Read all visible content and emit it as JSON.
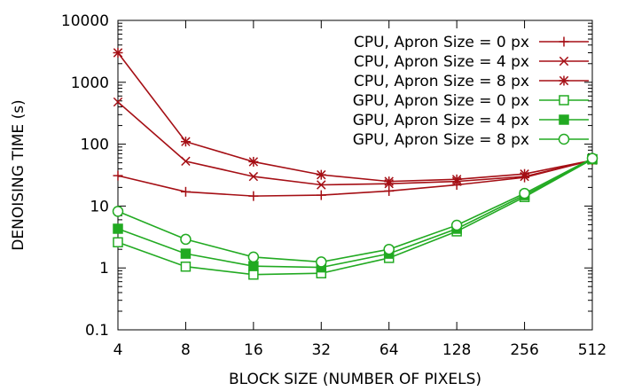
{
  "chart_data": {
    "type": "line",
    "xlabel": "BLOCK SIZE (NUMBER OF PIXELS)",
    "ylabel": "DENOISING TIME (s)",
    "x_scale": "log2",
    "y_scale": "log10",
    "ylim": [
      0.1,
      10000
    ],
    "x": [
      4,
      8,
      16,
      32,
      64,
      128,
      256,
      512
    ],
    "x_tick_labels": [
      "4",
      "8",
      "16",
      "32",
      "64",
      "128",
      "256",
      "512"
    ],
    "y_tick_labels": [
      "0.1",
      "1",
      "10",
      "100",
      "1000",
      "10000"
    ],
    "y_ticks": [
      0.1,
      1,
      10,
      100,
      1000,
      10000
    ],
    "legend_position": "top-right",
    "grid": false,
    "series": [
      {
        "name": "CPU, Apron Size = 0 px",
        "color": "#a50f15",
        "marker": "plus",
        "values": [
          31,
          17,
          14.5,
          15,
          17.5,
          22,
          29,
          55
        ]
      },
      {
        "name": "CPU, Apron Size = 4 px",
        "color": "#a50f15",
        "marker": "cross",
        "values": [
          480,
          53,
          30,
          22,
          23,
          25,
          30,
          55
        ]
      },
      {
        "name": "CPU, Apron Size = 8 px",
        "color": "#a50f15",
        "marker": "star",
        "values": [
          3000,
          110,
          52,
          32,
          25,
          27,
          33,
          55
        ]
      },
      {
        "name": "GPU, Apron Size = 0 px",
        "color": "#22aa22",
        "marker": "square-open",
        "values": [
          2.6,
          1.05,
          0.78,
          0.82,
          1.45,
          3.9,
          14,
          57
        ]
      },
      {
        "name": "GPU, Apron Size = 4 px",
        "color": "#22aa22",
        "marker": "square-filled",
        "values": [
          4.3,
          1.7,
          1.07,
          1.02,
          1.7,
          4.3,
          15,
          57
        ]
      },
      {
        "name": "GPU, Apron Size = 8 px",
        "color": "#22aa22",
        "marker": "circle-open",
        "values": [
          8.2,
          2.9,
          1.5,
          1.25,
          2.0,
          4.9,
          16,
          59
        ]
      }
    ]
  }
}
